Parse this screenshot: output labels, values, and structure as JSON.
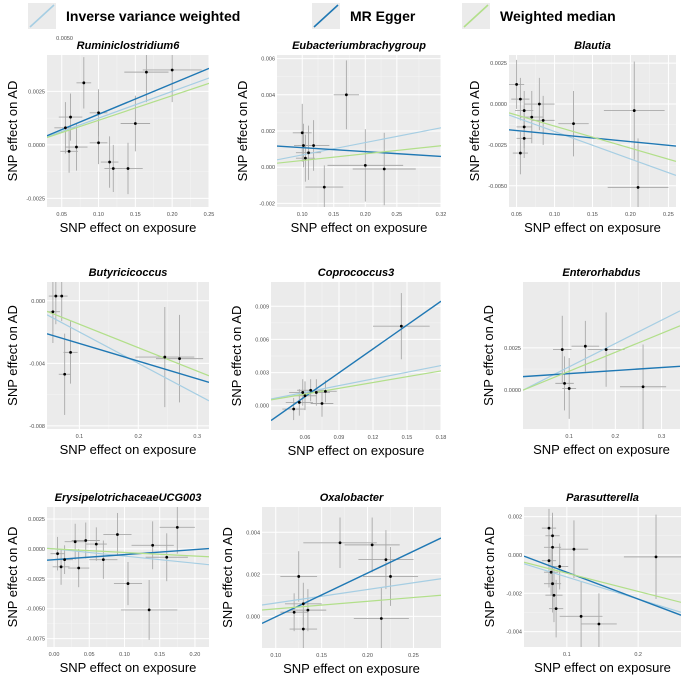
{
  "legend": {
    "items": [
      {
        "label": "Inverse variance weighted",
        "color": "#a6cee3"
      },
      {
        "label": "MR Egger",
        "color": "#1f78b4"
      },
      {
        "label": "Weighted median",
        "color": "#b2df8a"
      }
    ]
  },
  "chart_data": [
    {
      "type": "scatter",
      "title": "Ruminiclostridium6",
      "xlabel": "SNP effect on exposure",
      "ylabel": "SNP effect on AD",
      "xlim": [
        0.03,
        0.25
      ],
      "ylim": [
        -0.0029,
        0.0042
      ],
      "xticks": [
        0.05,
        0.1,
        0.15,
        0.2,
        0.25
      ],
      "xtick_labels": [
        "0.05",
        "0.10",
        "0.15",
        "0.20",
        "0.25"
      ],
      "yticks": [
        -0.0025,
        0.0,
        0.0025
      ],
      "ytick_labels": [
        "-0.0025",
        "0.0000",
        "0.0025"
      ],
      "extra_yticks": [
        0.005
      ],
      "extra_ytick_labels": [
        "0.0050"
      ],
      "points": [
        {
          "x": 0.055,
          "y": 0.0008,
          "xe": 0.015,
          "ye": 0.0012
        },
        {
          "x": 0.062,
          "y": 0.0013,
          "xe": 0.016,
          "ye": 0.0011
        },
        {
          "x": 0.06,
          "y": -0.0003,
          "xe": 0.012,
          "ye": 0.001
        },
        {
          "x": 0.07,
          "y": -0.0001,
          "xe": 0.015,
          "ye": 0.0011
        },
        {
          "x": 0.08,
          "y": 0.0029,
          "xe": 0.01,
          "ye": 0.0012
        },
        {
          "x": 0.1,
          "y": 0.0015,
          "xe": 0.012,
          "ye": 0.0011
        },
        {
          "x": 0.1,
          "y": 0.0001,
          "xe": 0.012,
          "ye": 0.001
        },
        {
          "x": 0.115,
          "y": -0.0008,
          "xe": 0.012,
          "ye": 0.0012
        },
        {
          "x": 0.12,
          "y": -0.0011,
          "xe": 0.012,
          "ye": 0.0011
        },
        {
          "x": 0.14,
          "y": -0.0011,
          "xe": 0.02,
          "ye": 0.0012
        },
        {
          "x": 0.15,
          "y": 0.001,
          "xe": 0.02,
          "ye": 0.0013
        },
        {
          "x": 0.165,
          "y": 0.0034,
          "xe": 0.03,
          "ye": 0.0014
        },
        {
          "x": 0.2,
          "y": 0.0035,
          "xe": 0.04,
          "ye": 0.0015
        }
      ],
      "lines": [
        {
          "name": "Inverse variance weighted",
          "slope": 0.0125,
          "intercept": 0.0
        },
        {
          "name": "MR Egger",
          "slope": 0.0143,
          "intercept": 0.0
        },
        {
          "name": "Weighted median",
          "slope": 0.0115,
          "intercept": 0.0
        }
      ]
    },
    {
      "type": "scatter",
      "title": "Eubacteriumbrachygroup",
      "xlabel": "SNP effect on exposure",
      "ylabel": "SNP effect on AD",
      "xlim": [
        0.06,
        0.32
      ],
      "ylim": [
        -0.0022,
        0.0062
      ],
      "xticks": [
        0.1,
        0.15,
        0.2,
        0.25,
        0.32
      ],
      "xtick_labels": [
        "0.10",
        "0.15",
        "0.20",
        "0.25",
        "0.32"
      ],
      "yticks": [
        -0.002,
        0.0,
        0.002,
        0.004,
        0.006
      ],
      "ytick_labels": [
        "-0.002",
        "0.000",
        "0.002",
        "0.004",
        "0.006"
      ],
      "points": [
        {
          "x": 0.1,
          "y": 0.0019,
          "xe": 0.015,
          "ye": 0.0016
        },
        {
          "x": 0.102,
          "y": 0.0012,
          "xe": 0.015,
          "ye": 0.0012
        },
        {
          "x": 0.105,
          "y": 0.0005,
          "xe": 0.015,
          "ye": 0.0013
        },
        {
          "x": 0.11,
          "y": 0.0008,
          "xe": 0.02,
          "ye": 0.0015
        },
        {
          "x": 0.118,
          "y": 0.0012,
          "xe": 0.025,
          "ye": 0.0014
        },
        {
          "x": 0.135,
          "y": -0.0011,
          "xe": 0.03,
          "ye": 0.0012
        },
        {
          "x": 0.17,
          "y": 0.004,
          "xe": 0.02,
          "ye": 0.0019
        },
        {
          "x": 0.2,
          "y": 0.0001,
          "xe": 0.06,
          "ye": 0.002
        },
        {
          "x": 0.23,
          "y": -0.0001,
          "xe": 0.05,
          "ye": 0.002
        }
      ],
      "lines": [
        {
          "name": "Inverse variance weighted",
          "slope": 0.0068,
          "intercept": 0.0
        },
        {
          "name": "MR Egger",
          "slope": -0.0022,
          "intercept": 0.0013
        },
        {
          "name": "Weighted median",
          "slope": 0.0037,
          "intercept": 0.0
        }
      ]
    },
    {
      "type": "scatter",
      "title": "Blautia",
      "xlabel": "SNP effect on exposure",
      "ylabel": "SNP effect on AD",
      "xlim": [
        0.04,
        0.26
      ],
      "ylim": [
        -0.0063,
        0.003
      ],
      "xticks": [
        0.05,
        0.1,
        0.15,
        0.2,
        0.25
      ],
      "xtick_labels": [
        "0.05",
        "0.10",
        "0.15",
        "0.20",
        "0.25"
      ],
      "yticks": [
        0.0025,
        0.0,
        -0.0025,
        -0.005
      ],
      "ytick_labels": [
        "0.0025",
        "0.0000",
        "-0.0025",
        "-0.0050"
      ],
      "points": [
        {
          "x": 0.05,
          "y": 0.0012,
          "xe": 0.01,
          "ye": 0.0015
        },
        {
          "x": 0.055,
          "y": 0.0003,
          "xe": 0.012,
          "ye": 0.0013
        },
        {
          "x": 0.06,
          "y": -0.0004,
          "xe": 0.012,
          "ye": 0.0012
        },
        {
          "x": 0.06,
          "y": -0.0014,
          "xe": 0.01,
          "ye": 0.0013
        },
        {
          "x": 0.06,
          "y": -0.0021,
          "xe": 0.01,
          "ye": 0.0012
        },
        {
          "x": 0.055,
          "y": -0.003,
          "xe": 0.01,
          "ye": 0.0013
        },
        {
          "x": 0.07,
          "y": -0.0008,
          "xe": 0.015,
          "ye": 0.0016
        },
        {
          "x": 0.08,
          "y": 0.0,
          "xe": 0.02,
          "ye": 0.0016
        },
        {
          "x": 0.085,
          "y": -0.001,
          "xe": 0.015,
          "ye": 0.0015
        },
        {
          "x": 0.125,
          "y": -0.0012,
          "xe": 0.02,
          "ye": 0.002
        },
        {
          "x": 0.205,
          "y": -0.0004,
          "xe": 0.04,
          "ye": 0.003
        },
        {
          "x": 0.21,
          "y": -0.0051,
          "xe": 0.04,
          "ye": 0.003
        }
      ],
      "lines": [
        {
          "name": "Inverse variance weighted",
          "slope": -0.0168,
          "intercept": 0.0
        },
        {
          "name": "MR Egger",
          "slope": -0.0045,
          "intercept": -0.0014
        },
        {
          "name": "Weighted median",
          "slope": -0.0135,
          "intercept": 0.0
        }
      ]
    },
    {
      "type": "scatter",
      "title": "Butyricicoccus",
      "xlabel": "SNP effect on exposure",
      "ylabel": "SNP effect on AD",
      "xlim": [
        0.045,
        0.32
      ],
      "ylim": [
        -0.0082,
        0.0012
      ],
      "xticks": [
        0.1,
        0.2,
        0.3
      ],
      "xtick_labels": [
        "0.1",
        "0.2",
        "0.3"
      ],
      "yticks": [
        0.0,
        -0.004,
        -0.008
      ],
      "ytick_labels": [
        "0.000",
        "-0.004",
        "-0.008"
      ],
      "points": [
        {
          "x": 0.055,
          "y": -0.0007,
          "xe": 0.012,
          "ye": 0.002
        },
        {
          "x": 0.06,
          "y": 0.0003,
          "xe": 0.012,
          "ye": 0.0018
        },
        {
          "x": 0.07,
          "y": 0.0003,
          "xe": 0.01,
          "ye": 0.0016
        },
        {
          "x": 0.075,
          "y": -0.0047,
          "xe": 0.01,
          "ye": 0.0026
        },
        {
          "x": 0.085,
          "y": -0.0033,
          "xe": 0.012,
          "ye": 0.002
        },
        {
          "x": 0.245,
          "y": -0.0036,
          "xe": 0.05,
          "ye": 0.0032
        },
        {
          "x": 0.27,
          "y": -0.0037,
          "xe": 0.04,
          "ye": 0.0028
        }
      ],
      "lines": [
        {
          "name": "Inverse variance weighted",
          "slope": -0.02,
          "intercept": 0.0
        },
        {
          "name": "MR Egger",
          "slope": -0.0113,
          "intercept": -0.0016
        },
        {
          "name": "Weighted median",
          "slope": -0.015,
          "intercept": 0.0
        }
      ]
    },
    {
      "type": "scatter",
      "title": "Coprococcus3",
      "xlabel": "SNP effect on exposure",
      "ylabel": "SNP effect on AD",
      "xlim": [
        0.03,
        0.18
      ],
      "ylim": [
        -0.0022,
        0.0112
      ],
      "xticks": [
        0.06,
        0.09,
        0.12,
        0.15,
        0.18
      ],
      "xtick_labels": [
        "0.06",
        "0.09",
        "0.12",
        "0.15",
        "0.18"
      ],
      "yticks": [
        0.0,
        0.003,
        0.006,
        0.009
      ],
      "ytick_labels": [
        "0.000",
        "0.003",
        "0.006",
        "0.009"
      ],
      "points": [
        {
          "x": 0.05,
          "y": -0.0003,
          "xe": 0.01,
          "ye": 0.001
        },
        {
          "x": 0.055,
          "y": 0.0003,
          "xe": 0.012,
          "ye": 0.0012
        },
        {
          "x": 0.058,
          "y": 0.0012,
          "xe": 0.012,
          "ye": 0.0012
        },
        {
          "x": 0.06,
          "y": 0.0009,
          "xe": 0.01,
          "ye": 0.0013
        },
        {
          "x": 0.065,
          "y": 0.0014,
          "xe": 0.012,
          "ye": 0.001
        },
        {
          "x": 0.07,
          "y": 0.0012,
          "xe": 0.012,
          "ye": 0.0012
        },
        {
          "x": 0.075,
          "y": 0.0002,
          "xe": 0.01,
          "ye": 0.0012
        },
        {
          "x": 0.078,
          "y": 0.0013,
          "xe": 0.01,
          "ye": 0.001
        },
        {
          "x": 0.145,
          "y": 0.0072,
          "xe": 0.025,
          "ye": 0.003
        }
      ],
      "lines": [
        {
          "name": "Inverse variance weighted",
          "slope": 0.0202,
          "intercept": 0.0
        },
        {
          "name": "MR Egger",
          "slope": 0.072,
          "intercept": -0.0035
        },
        {
          "name": "Weighted median",
          "slope": 0.0175,
          "intercept": 0.0
        }
      ]
    },
    {
      "type": "scatter",
      "title": "Enterorhabdus",
      "xlabel": "SNP effect on exposure",
      "ylabel": "SNP effect on AD",
      "xlim": [
        0.0,
        0.34
      ],
      "ylim": [
        -0.0023,
        0.0064
      ],
      "xticks": [
        0.1,
        0.2,
        0.3
      ],
      "xtick_labels": [
        "0.1",
        "0.2",
        "0.3"
      ],
      "yticks": [
        0.0,
        0.0025
      ],
      "ytick_labels": [
        "0.0000",
        "0.0025"
      ],
      "points": [
        {
          "x": 0.085,
          "y": 0.0024,
          "xe": 0.02,
          "ye": 0.002
        },
        {
          "x": 0.09,
          "y": 0.0004,
          "xe": 0.02,
          "ye": 0.0016
        },
        {
          "x": 0.1,
          "y": 0.0001,
          "xe": 0.015,
          "ye": 0.0018
        },
        {
          "x": 0.135,
          "y": 0.0026,
          "xe": 0.03,
          "ye": 0.0015
        },
        {
          "x": 0.18,
          "y": 0.0024,
          "xe": 0.04,
          "ye": 0.0022
        },
        {
          "x": 0.26,
          "y": 0.0002,
          "xe": 0.05,
          "ye": 0.0025
        }
      ],
      "lines": [
        {
          "name": "Inverse variance weighted",
          "slope": 0.0138,
          "intercept": 0.0
        },
        {
          "name": "MR Egger",
          "slope": 0.0018,
          "intercept": 0.0008
        },
        {
          "name": "Weighted median",
          "slope": 0.0112,
          "intercept": 0.0
        }
      ]
    },
    {
      "type": "scatter",
      "title": "ErysipelotrichaceaeUCG003",
      "xlabel": "SNP effect on exposure",
      "ylabel": "SNP effect on AD",
      "xlim": [
        -0.01,
        0.22
      ],
      "ylim": [
        -0.0082,
        0.0035
      ],
      "xticks": [
        0.0,
        0.05,
        0.1,
        0.15,
        0.2
      ],
      "xtick_labels": [
        "0.00",
        "0.05",
        "0.10",
        "0.15",
        "0.20"
      ],
      "yticks": [
        0.0025,
        0.0,
        -0.0025,
        -0.005,
        -0.0075
      ],
      "ytick_labels": [
        "0.0025",
        "0.0000",
        "-0.0025",
        "-0.0050",
        "-0.0075"
      ],
      "points": [
        {
          "x": 0.005,
          "y": -0.0004,
          "xe": 0.01,
          "ye": 0.0014
        },
        {
          "x": 0.01,
          "y": -0.0015,
          "xe": 0.012,
          "ye": 0.0015
        },
        {
          "x": 0.015,
          "y": -0.0009,
          "xe": 0.012,
          "ye": 0.0012
        },
        {
          "x": 0.03,
          "y": 0.0006,
          "xe": 0.015,
          "ye": 0.0015
        },
        {
          "x": 0.035,
          "y": -0.0016,
          "xe": 0.015,
          "ye": 0.0016
        },
        {
          "x": 0.045,
          "y": 0.0007,
          "xe": 0.02,
          "ye": 0.0015
        },
        {
          "x": 0.06,
          "y": 0.0004,
          "xe": 0.015,
          "ye": 0.0014
        },
        {
          "x": 0.07,
          "y": -0.0009,
          "xe": 0.02,
          "ye": 0.0016
        },
        {
          "x": 0.09,
          "y": 0.0012,
          "xe": 0.02,
          "ye": 0.0018
        },
        {
          "x": 0.105,
          "y": -0.0029,
          "xe": 0.02,
          "ye": 0.0018
        },
        {
          "x": 0.135,
          "y": -0.0051,
          "xe": 0.04,
          "ye": 0.0025
        },
        {
          "x": 0.14,
          "y": 0.0003,
          "xe": 0.03,
          "ye": 0.002
        },
        {
          "x": 0.16,
          "y": -0.0007,
          "xe": 0.03,
          "ye": 0.002
        },
        {
          "x": 0.175,
          "y": 0.0018,
          "xe": 0.025,
          "ye": 0.0022
        }
      ],
      "lines": [
        {
          "name": "Inverse variance weighted",
          "slope": -0.006,
          "intercept": 0.0
        },
        {
          "name": "MR Egger",
          "slope": 0.0042,
          "intercept": -0.0009
        },
        {
          "name": "Weighted median",
          "slope": -0.003,
          "intercept": 0.0
        }
      ]
    },
    {
      "type": "scatter",
      "title": "Oxalobacter",
      "xlabel": "SNP effect on exposure",
      "ylabel": "SNP effect on AD",
      "xlim": [
        0.085,
        0.28
      ],
      "ylim": [
        -0.0015,
        0.0052
      ],
      "xticks": [
        0.1,
        0.15,
        0.2,
        0.25
      ],
      "xtick_labels": [
        "0.10",
        "0.15",
        "0.20",
        "0.25"
      ],
      "yticks": [
        0.0,
        0.002,
        0.004
      ],
      "ytick_labels": [
        "0.000",
        "0.002",
        "0.004"
      ],
      "points": [
        {
          "x": 0.12,
          "y": 0.0002,
          "xe": 0.015,
          "ye": 0.0009
        },
        {
          "x": 0.125,
          "y": 0.0019,
          "xe": 0.02,
          "ye": 0.0012
        },
        {
          "x": 0.13,
          "y": -0.0006,
          "xe": 0.015,
          "ye": 0.0009
        },
        {
          "x": 0.13,
          "y": 0.0006,
          "xe": 0.02,
          "ye": 0.001
        },
        {
          "x": 0.135,
          "y": 0.0003,
          "xe": 0.02,
          "ye": 0.001
        },
        {
          "x": 0.17,
          "y": 0.0035,
          "xe": 0.04,
          "ye": 0.0012
        },
        {
          "x": 0.205,
          "y": 0.0034,
          "xe": 0.03,
          "ye": 0.0013
        },
        {
          "x": 0.215,
          "y": -0.0001,
          "xe": 0.03,
          "ye": 0.0015
        },
        {
          "x": 0.22,
          "y": 0.0027,
          "xe": 0.03,
          "ye": 0.0014
        },
        {
          "x": 0.225,
          "y": 0.0019,
          "xe": 0.03,
          "ye": 0.0014
        }
      ],
      "lines": [
        {
          "name": "Inverse variance weighted",
          "slope": 0.0064,
          "intercept": 0.0
        },
        {
          "name": "MR Egger",
          "slope": 0.0208,
          "intercept": -0.0021
        },
        {
          "name": "Weighted median",
          "slope": 0.0036,
          "intercept": 0.0
        }
      ]
    },
    {
      "type": "scatter",
      "title": "Parasutterella",
      "xlabel": "SNP effect on exposure",
      "ylabel": "SNP effect on AD",
      "xlim": [
        0.04,
        0.26
      ],
      "ylim": [
        -0.0048,
        0.0025
      ],
      "xticks": [
        0.1,
        0.2
      ],
      "xtick_labels": [
        "0.1",
        "0.2"
      ],
      "yticks": [
        0.002,
        0.0,
        -0.002,
        -0.004
      ],
      "ytick_labels": [
        "0.002",
        "0.000",
        "-0.002",
        "-0.004"
      ],
      "points": [
        {
          "x": 0.075,
          "y": 0.0014,
          "xe": 0.01,
          "ye": 0.001
        },
        {
          "x": 0.08,
          "y": 0.001,
          "xe": 0.01,
          "ye": 0.0012
        },
        {
          "x": 0.08,
          "y": 0.0004,
          "xe": 0.012,
          "ye": 0.0012
        },
        {
          "x": 0.075,
          "y": -0.0003,
          "xe": 0.01,
          "ye": 0.0014
        },
        {
          "x": 0.078,
          "y": -0.0009,
          "xe": 0.01,
          "ye": 0.0012
        },
        {
          "x": 0.08,
          "y": -0.0015,
          "xe": 0.012,
          "ye": 0.0015
        },
        {
          "x": 0.082,
          "y": -0.0021,
          "xe": 0.012,
          "ye": 0.0014
        },
        {
          "x": 0.085,
          "y": -0.0028,
          "xe": 0.01,
          "ye": 0.0015
        },
        {
          "x": 0.09,
          "y": -0.0006,
          "xe": 0.012,
          "ye": 0.0012
        },
        {
          "x": 0.11,
          "y": 0.0003,
          "xe": 0.02,
          "ye": 0.0015
        },
        {
          "x": 0.12,
          "y": -0.0032,
          "xe": 0.03,
          "ye": 0.0018
        },
        {
          "x": 0.145,
          "y": -0.0036,
          "xe": 0.025,
          "ye": 0.0016
        },
        {
          "x": 0.225,
          "y": -0.0001,
          "xe": 0.045,
          "ye": 0.0022
        }
      ],
      "lines": [
        {
          "name": "Inverse variance weighted",
          "slope": -0.0115,
          "intercept": 0.0
        },
        {
          "name": "MR Egger",
          "slope": -0.014,
          "intercept": 0.0005
        },
        {
          "name": "Weighted median",
          "slope": -0.0095,
          "intercept": 0.0
        }
      ]
    }
  ]
}
